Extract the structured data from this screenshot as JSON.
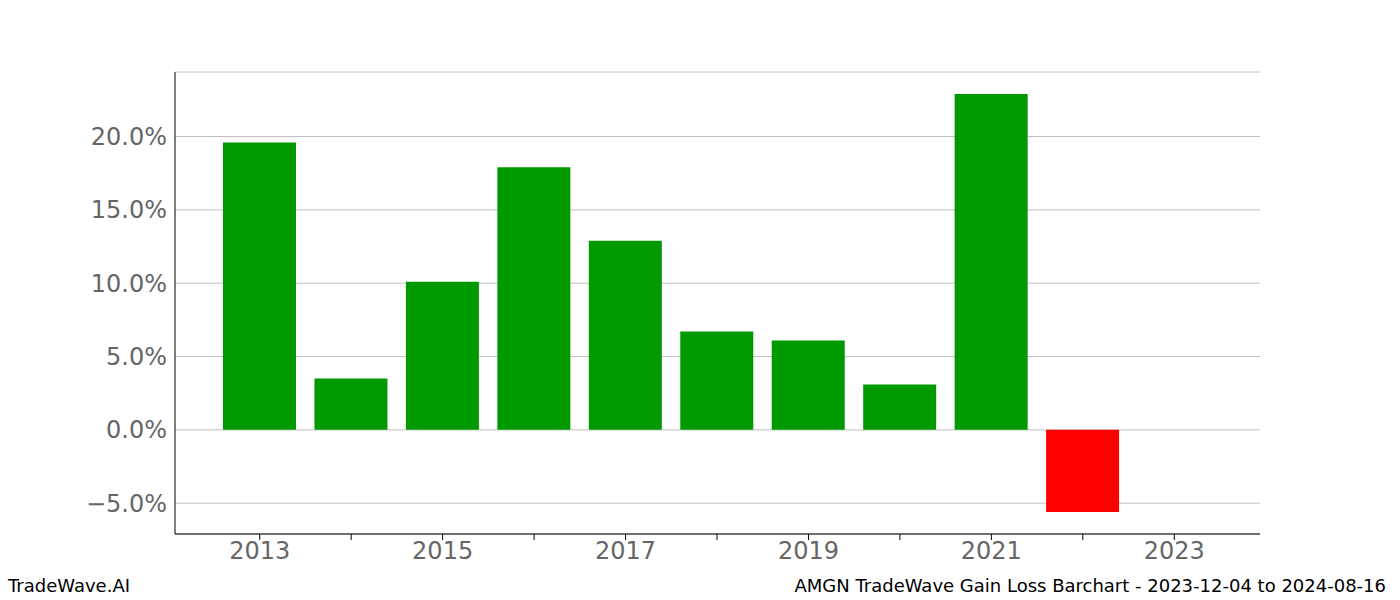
{
  "chart_data": {
    "type": "bar",
    "categories": [
      "2013",
      null,
      "2015",
      null,
      "2017",
      null,
      "2019",
      null,
      "2021",
      null,
      "2023"
    ],
    "values": [
      19.6,
      3.5,
      10.1,
      17.9,
      12.9,
      6.7,
      6.1,
      3.1,
      22.9,
      -5.6,
      null
    ],
    "colors": [
      "#009900",
      "#009900",
      "#009900",
      "#009900",
      "#009900",
      "#009900",
      "#009900",
      "#009900",
      "#009900",
      "#ff0000",
      null
    ],
    "ylim": [
      -7.1,
      24.4
    ],
    "yticks": [
      {
        "value": -5,
        "label": "−5.0%"
      },
      {
        "value": 0,
        "label": "0.0%"
      },
      {
        "value": 5,
        "label": "5.0%"
      },
      {
        "value": 10,
        "label": "10.0%"
      },
      {
        "value": 15,
        "label": "15.0%"
      },
      {
        "value": 20,
        "label": "20.0%"
      }
    ],
    "grid": true,
    "annotations": [
      "TradeWave.AI",
      "AMGN TradeWave Gain Loss Barchart - 2023-12-04 to 2024-08-16"
    ]
  }
}
